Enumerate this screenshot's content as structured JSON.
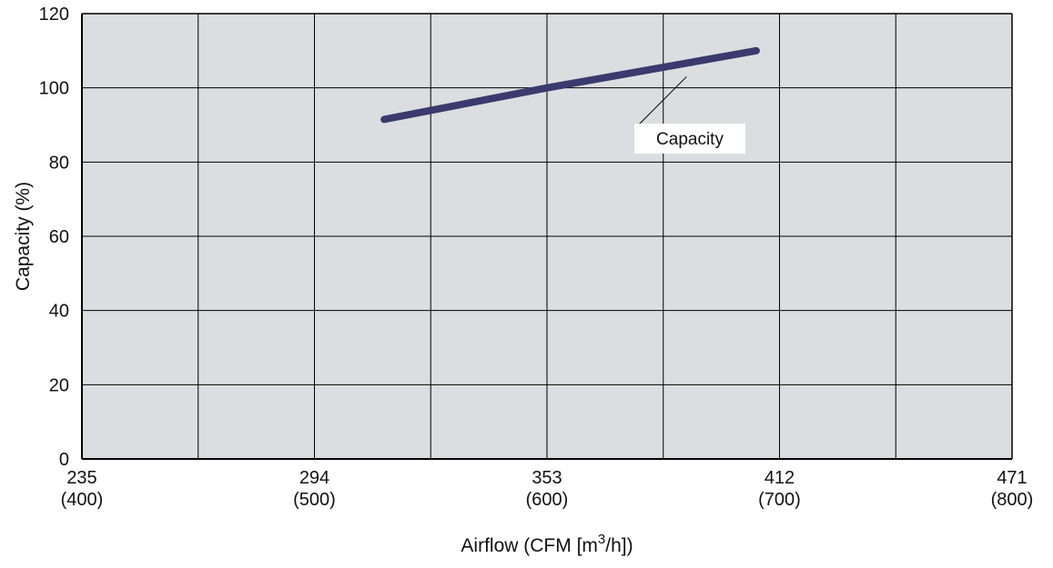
{
  "chart_data": {
    "type": "line",
    "xlabel_main": "Airflow (CFM [m",
    "xlabel_sup": "3",
    "xlabel_tail": "/h])",
    "ylabel": "Capacity (%)",
    "x_ticks": [
      {
        "cfm": "235",
        "m3h": "(400)",
        "value": 400
      },
      {
        "cfm": "294",
        "m3h": "(500)",
        "value": 500
      },
      {
        "cfm": "353",
        "m3h": "(600)",
        "value": 600
      },
      {
        "cfm": "412",
        "m3h": "(700)",
        "value": 700
      },
      {
        "cfm": "471",
        "m3h": "(800)",
        "value": 800
      }
    ],
    "y_ticks": [
      "0",
      "20",
      "40",
      "60",
      "80",
      "100",
      "120"
    ],
    "xlim": [
      400,
      800
    ],
    "ylim": [
      0,
      120
    ],
    "x_gridlines": [
      400,
      450,
      500,
      550,
      600,
      650,
      700,
      750,
      800
    ],
    "y_gridlines": [
      0,
      20,
      40,
      60,
      80,
      100,
      120
    ],
    "grid": true,
    "series": [
      {
        "name": "Capacity",
        "color": "#3a3a6e",
        "x": [
          530,
          600,
          690
        ],
        "y": [
          91.5,
          100,
          110
        ]
      }
    ],
    "annotation": {
      "text": "Capacity",
      "points_to_x": 660,
      "points_to_y": 103
    }
  }
}
